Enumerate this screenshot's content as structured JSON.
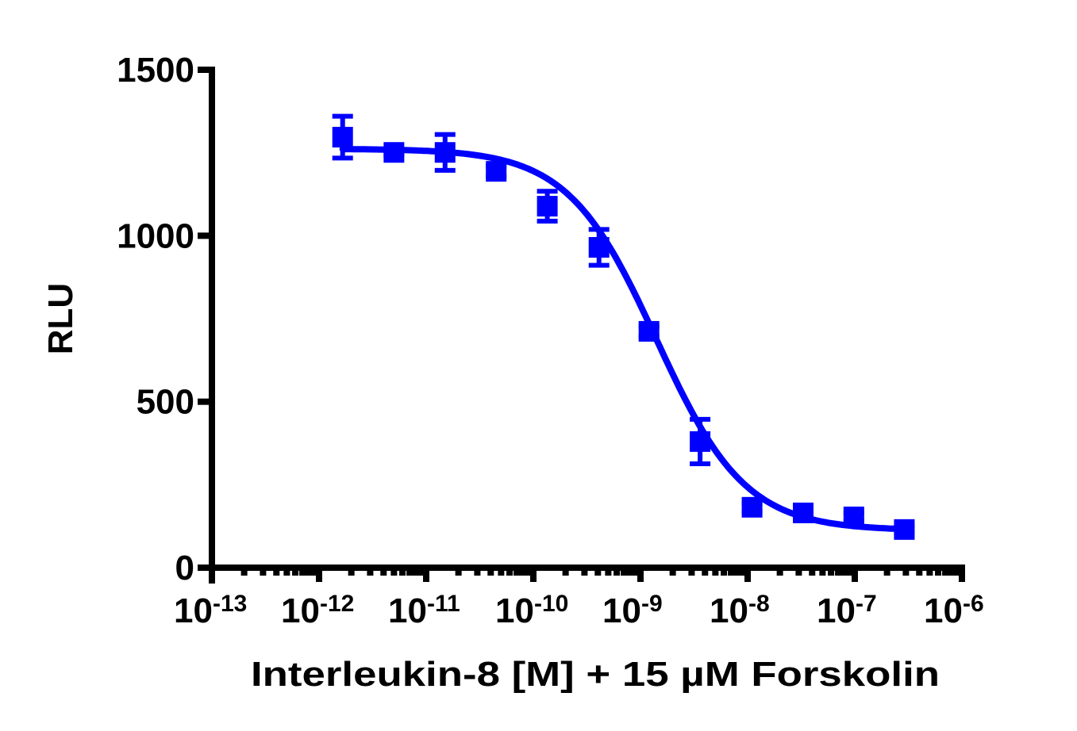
{
  "chart_data": {
    "type": "scatter",
    "title": "",
    "xlabel": "Interleukin-8 [M] + 15  µM Forskolin",
    "ylabel": "RLU",
    "xscale": "log",
    "xlim": [
      1e-13,
      1e-06
    ],
    "ylim": [
      0,
      1500
    ],
    "x_ticks": [
      {
        "base": "10",
        "exp": "-13"
      },
      {
        "base": "10",
        "exp": "-12"
      },
      {
        "base": "10",
        "exp": "-11"
      },
      {
        "base": "10",
        "exp": "-10"
      },
      {
        "base": "10",
        "exp": "-9"
      },
      {
        "base": "10",
        "exp": "-8"
      },
      {
        "base": "10",
        "exp": "-7"
      },
      {
        "base": "10",
        "exp": "-6"
      }
    ],
    "y_ticks": [
      "0",
      "500",
      "1000",
      "1500"
    ],
    "grid": false,
    "legend": null,
    "color": "#0000ff",
    "marker": "square",
    "series": [
      {
        "name": "Interleukin-8",
        "x": [
          1.66e-12,
          5e-12,
          1.5e-11,
          4.5e-11,
          1.35e-10,
          4.1e-10,
          1.2e-09,
          3.6e-09,
          1.1e-08,
          3.3e-08,
          9.8e-08,
          2.9e-07
        ],
        "y": [
          1297,
          1251,
          1251,
          1194,
          1089,
          965,
          712,
          380,
          182,
          165,
          153,
          115
        ],
        "error": [
          63,
          8,
          54,
          15,
          45,
          54,
          15,
          67,
          12,
          12,
          12,
          10
        ]
      }
    ],
    "fit": {
      "model": "4PL sigmoidal dose-response",
      "top": 1262,
      "bottom": 112,
      "log_ic50": -8.85,
      "hill_slope": -1.05,
      "x_range": [
        1.66e-12,
        2.9e-07
      ]
    }
  }
}
